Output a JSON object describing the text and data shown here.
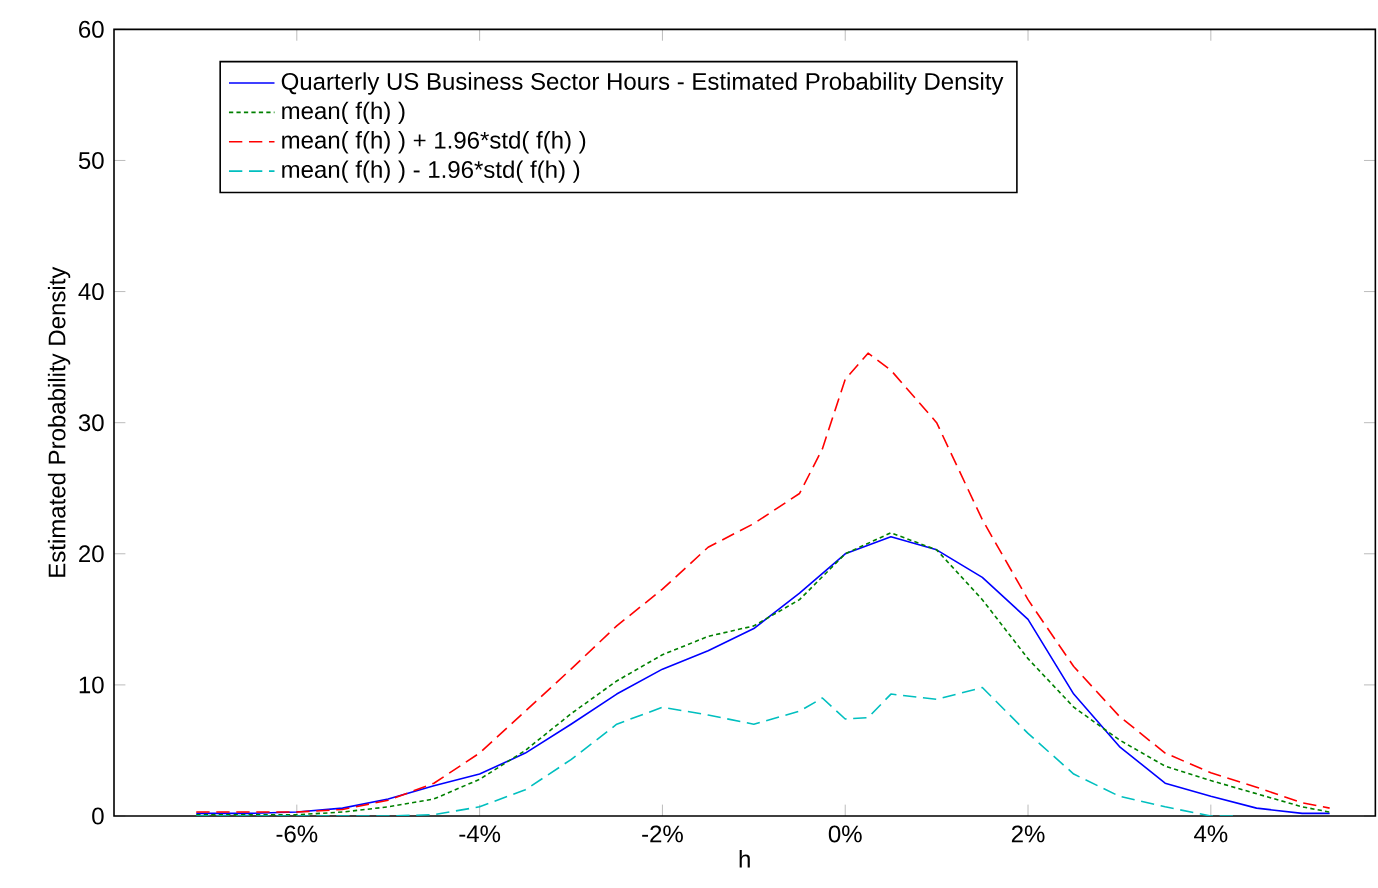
{
  "chart_data": {
    "type": "line",
    "xlabel": "h",
    "ylabel": "Estimated Probability Density",
    "xlim": [
      -8,
      5.8
    ],
    "ylim": [
      0,
      60
    ],
    "xticks": [
      {
        "value": -6,
        "label": "-6%"
      },
      {
        "value": -4,
        "label": "-4%"
      },
      {
        "value": -2,
        "label": "-2%"
      },
      {
        "value": 0,
        "label": "0%"
      },
      {
        "value": 2,
        "label": "2%"
      },
      {
        "value": 4,
        "label": "4%"
      }
    ],
    "yticks": [
      0,
      10,
      20,
      30,
      40,
      50,
      60
    ],
    "grid": false,
    "legend": "top",
    "marker": "none",
    "series": [
      {
        "name": "Quarterly US Business Sector Hours - Estimated Probability Density",
        "color": "#0000ff",
        "line_style": "solid",
        "x": [
          -7.1,
          -6.5,
          -6,
          -5.5,
          -5,
          -4.5,
          -4,
          -3.5,
          -3,
          -2.5,
          -2,
          -1.5,
          -1,
          -0.5,
          0,
          0.5,
          1,
          1.5,
          2,
          2.5,
          3,
          3.5,
          4,
          4.5,
          5,
          5.3
        ],
        "values": [
          0.2,
          0.2,
          0.3,
          0.6,
          1.3,
          2.3,
          3.2,
          4.8,
          7,
          9.3,
          11.2,
          12.6,
          14.3,
          17,
          20,
          21.3,
          20.3,
          18.2,
          15,
          9.3,
          5.3,
          2.5,
          1.5,
          0.6,
          0.2,
          0.2
        ]
      },
      {
        "name": "mean( f(h) )",
        "color": "#008000",
        "line_style": "dotted",
        "x": [
          -7.1,
          -6.5,
          -6,
          -5.5,
          -5,
          -4.5,
          -4,
          -3.5,
          -3,
          -2.5,
          -2,
          -1.5,
          -1,
          -0.5,
          0,
          0.5,
          1,
          1.5,
          2,
          2.5,
          3,
          3.5,
          4,
          4.5,
          5,
          5.3
        ],
        "values": [
          0.1,
          0.1,
          0.1,
          0.3,
          0.7,
          1.3,
          2.8,
          5,
          7.8,
          10.3,
          12.3,
          13.7,
          14.5,
          16.5,
          20,
          21.6,
          20.3,
          16.5,
          12,
          8.3,
          5.8,
          3.8,
          2.7,
          1.7,
          0.7,
          0.3
        ]
      },
      {
        "name": "mean( f(h) ) + 1.96*std( f(h) )",
        "color": "#ff0000",
        "line_style": "dashed",
        "x": [
          -7.1,
          -6.5,
          -6,
          -5.5,
          -5,
          -4.5,
          -4,
          -3.5,
          -3,
          -2.5,
          -2,
          -1.5,
          -1,
          -0.5,
          -0.25,
          0,
          0.25,
          0.5,
          1,
          1.5,
          2,
          2.5,
          3,
          3.5,
          4,
          4.5,
          5,
          5.3
        ],
        "values": [
          0.3,
          0.3,
          0.3,
          0.5,
          1.2,
          2.5,
          4.8,
          8,
          11.2,
          14.5,
          17.3,
          20.5,
          22.3,
          24.6,
          28,
          33.3,
          35.3,
          34,
          30,
          22.6,
          16.5,
          11.4,
          7.6,
          4.8,
          3.3,
          2.2,
          1,
          0.6
        ]
      },
      {
        "name": "mean( f(h) ) - 1.96*std( f(h) )",
        "color": "#00bfbf",
        "line_style": "dashed",
        "x": [
          -7.1,
          -6,
          -5,
          -4.5,
          -4,
          -3.5,
          -3,
          -2.5,
          -2,
          -1.5,
          -1,
          -0.5,
          -0.25,
          0,
          0.25,
          0.5,
          1,
          1.5,
          2,
          2.5,
          3,
          3.5,
          4,
          4.3
        ],
        "values": [
          0,
          0,
          0,
          0.1,
          0.7,
          2,
          4.3,
          7,
          8.3,
          7.7,
          7,
          8,
          9,
          7.4,
          7.5,
          9.3,
          8.9,
          9.8,
          6.3,
          3.2,
          1.5,
          0.7,
          0,
          0
        ]
      }
    ]
  }
}
